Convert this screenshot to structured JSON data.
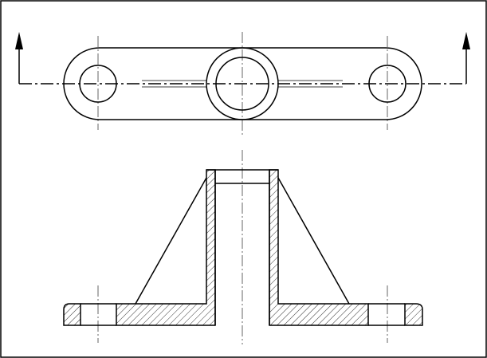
{
  "colors": {
    "ink": "#000000",
    "paper": "#ffffff"
  }
}
